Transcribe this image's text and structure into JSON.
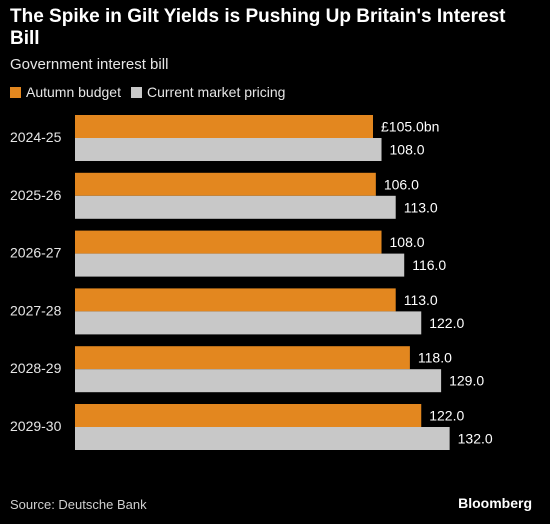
{
  "title": "The Spike in Gilt Yields is Pushing Up Britain's Interest Bill",
  "subtitle": "Government interest bill",
  "colors": {
    "series1": "#E3871F",
    "series2": "#C8C8C8",
    "background": "#000000"
  },
  "chart_data": {
    "type": "bar",
    "orientation": "horizontal",
    "title": "The Spike in Gilt Yields is Pushing Up Britain's Interest Bill",
    "subtitle": "Government interest bill",
    "categories": [
      "2024-25",
      "2025-26",
      "2026-27",
      "2027-28",
      "2028-29",
      "2029-30"
    ],
    "series": [
      {
        "name": "Autumn budget",
        "values": [
          105.0,
          106.0,
          108.0,
          113.0,
          118.0,
          122.0
        ],
        "labels": [
          "£105.0bn",
          "106.0",
          "108.0",
          "113.0",
          "118.0",
          "122.0"
        ]
      },
      {
        "name": "Current market pricing",
        "values": [
          108.0,
          113.0,
          116.0,
          122.0,
          129.0,
          132.0
        ],
        "labels": [
          "108.0",
          "113.0",
          "116.0",
          "122.0",
          "129.0",
          "132.0"
        ]
      }
    ],
    "legend_position": "top-left",
    "grid": false
  },
  "source": "Source: Deutsche Bank",
  "brand": "Bloomberg"
}
